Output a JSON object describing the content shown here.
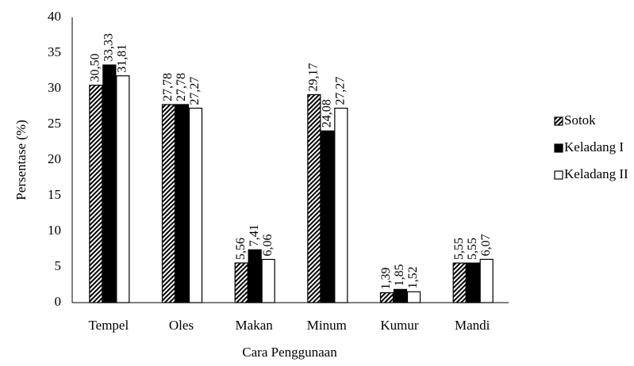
{
  "chart_data": {
    "type": "bar",
    "xlabel": "Cara Penggunaan",
    "ylabel": "Persentase (%)",
    "categories": [
      "Tempel",
      "Oles",
      "Makan",
      "Minum",
      "Kumur",
      "Mandi"
    ],
    "series": [
      {
        "name": "Sotok",
        "color": "#000000",
        "pattern": "diagonal-hatch",
        "values": [
          30.5,
          27.78,
          5.56,
          29.17,
          1.39,
          5.55
        ],
        "value_labels": [
          "30,50",
          "27,78",
          "5,56",
          "29,17",
          "1,39",
          "5,55"
        ]
      },
      {
        "name": "Keladang I",
        "color": "#000000",
        "values": [
          33.33,
          27.78,
          7.41,
          24.08,
          1.85,
          5.55
        ],
        "value_labels": [
          "33,33",
          "27,78",
          "7,41",
          "24,08",
          "1,85",
          "5,55"
        ]
      },
      {
        "name": "Keladang II",
        "color": "#ffffff",
        "values": [
          31.81,
          27.27,
          6.06,
          27.27,
          1.52,
          6.07
        ],
        "value_labels": [
          "31,81",
          "27,27",
          "6,06",
          "27,27",
          "1,52",
          "6,07"
        ]
      }
    ],
    "ylim": [
      0,
      40
    ],
    "yticks": [
      0,
      5,
      10,
      15,
      20,
      25,
      30,
      35,
      40
    ],
    "grid": false,
    "legend": "right"
  }
}
